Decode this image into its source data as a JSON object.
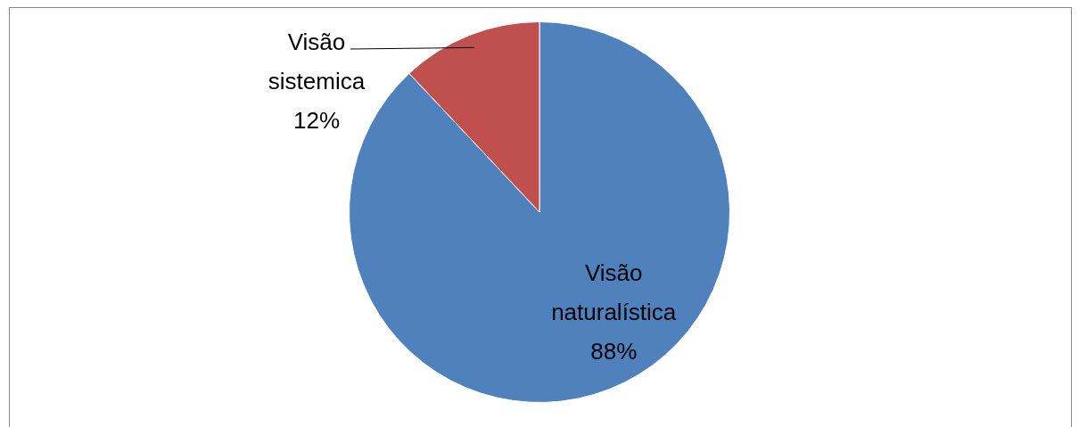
{
  "chart_data": {
    "type": "pie",
    "categories": [
      "Visão naturalística",
      "Visão sistemica"
    ],
    "values": [
      88,
      12
    ],
    "colors": [
      "#4f81bd",
      "#c0504d"
    ],
    "value_labels": [
      "88%",
      "12%"
    ],
    "legend": false
  }
}
